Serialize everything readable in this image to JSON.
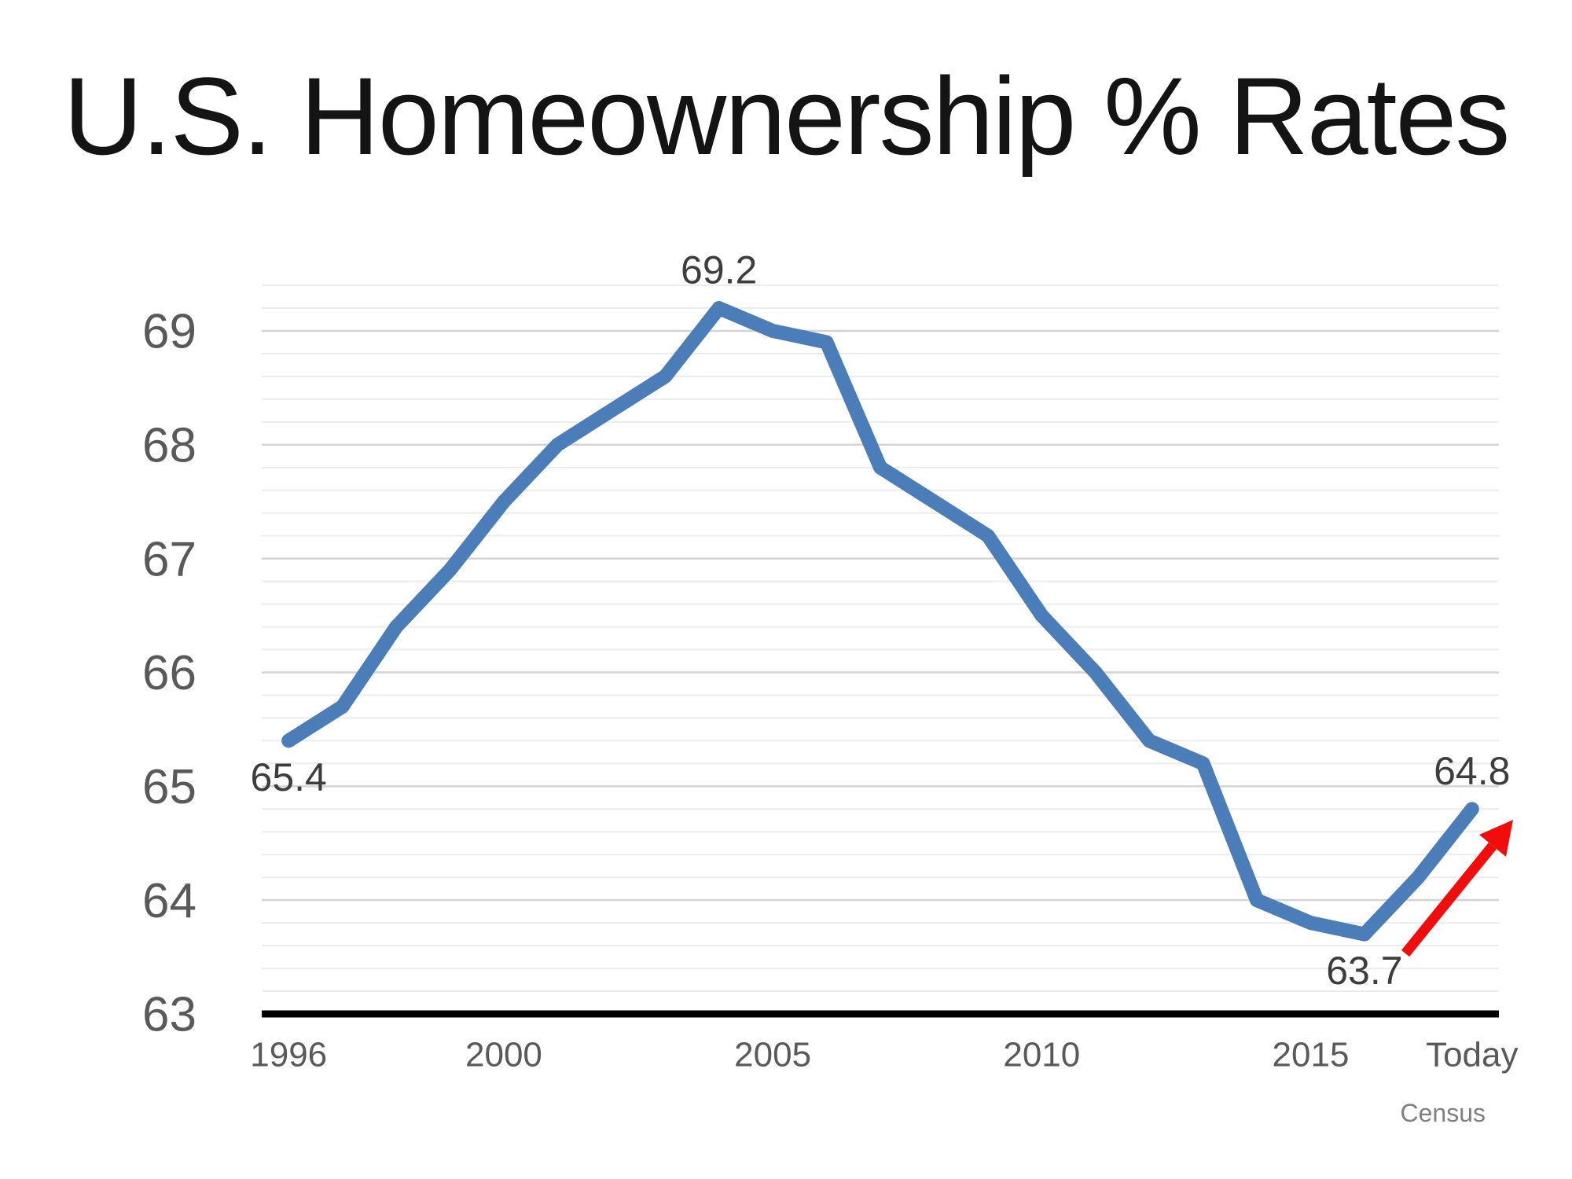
{
  "title": "U.S. Homeownership % Rates",
  "source_label": "Census",
  "chart_data": {
    "type": "line",
    "title": "U.S. Homeownership % Rates",
    "ylabel": "",
    "xlabel": "",
    "categories": [
      "1996",
      "1997",
      "1998",
      "1999",
      "2000",
      "2001",
      "2002",
      "2003",
      "2004",
      "2005",
      "2006",
      "2007",
      "2008",
      "2009",
      "2010",
      "2011",
      "2012",
      "2013",
      "2014",
      "2015",
      "2016",
      "2017",
      "Today"
    ],
    "values": [
      65.4,
      65.7,
      66.4,
      66.9,
      67.5,
      68.0,
      68.3,
      68.6,
      69.2,
      69.0,
      68.9,
      67.8,
      67.5,
      67.2,
      66.5,
      66.0,
      65.4,
      65.2,
      64.0,
      63.8,
      63.7,
      64.2,
      64.8
    ],
    "x_ticks_shown": [
      "1996",
      "2000",
      "2005",
      "2010",
      "2015",
      "Today"
    ],
    "y_ticks": [
      63,
      64,
      65,
      66,
      67,
      68,
      69
    ],
    "ylim": [
      63,
      69.4
    ],
    "minor_gridline_step": 0.2,
    "grid": true,
    "legend_position": "none",
    "line_color": "#4b7db9",
    "arrow_color": "#f20d0d",
    "axis_line_color": "#000000",
    "axis_label_color": "#595959",
    "data_label_color": "#3d3d3d",
    "gridline_minor_color": "#ececec",
    "gridline_major_color": "#d4d4d4",
    "data_labels": [
      {
        "text": "65.4",
        "category": "1996",
        "placement": "below"
      },
      {
        "text": "69.2",
        "category": "2004",
        "placement": "above"
      },
      {
        "text": "63.7",
        "category": "2016",
        "placement": "below"
      },
      {
        "text": "64.8",
        "category": "Today",
        "placement": "above"
      }
    ],
    "annotations": [
      {
        "type": "arrow",
        "description": "red upward trend arrow at right side",
        "color": "#f20d0d"
      }
    ],
    "source": "Census"
  }
}
